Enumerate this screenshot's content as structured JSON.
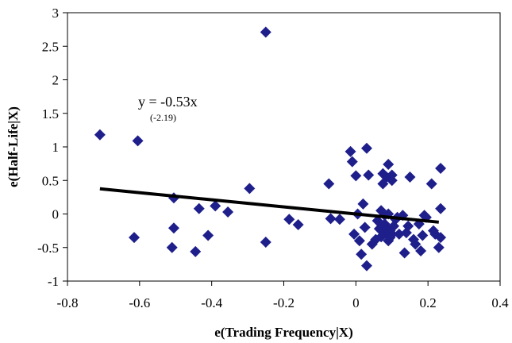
{
  "chart_data": {
    "type": "scatter",
    "xlabel": "e(Trading Frequency|X)",
    "ylabel": "e(Half-Life|X)",
    "xlim": [
      -0.8,
      0.4
    ],
    "ylim": [
      -1,
      3
    ],
    "xticks": [
      -0.8,
      -0.6,
      -0.4,
      -0.2,
      0,
      0.2,
      0.4
    ],
    "yticks": [
      -1,
      -0.5,
      0,
      0.5,
      1,
      1.5,
      2,
      2.5,
      3
    ],
    "xtick_labels": [
      "-0.8",
      "-0.6",
      "-0.4",
      "-0.2",
      "0",
      "0.2",
      "0.4"
    ],
    "ytick_labels": [
      "-1",
      "-0.5",
      "0",
      "0.5",
      "1",
      "1.5",
      "2",
      "2.5",
      "3"
    ],
    "marker_color": "#1f1f8c",
    "line_color": "#000000",
    "grid": false,
    "legend": "none",
    "annotation": {
      "equation": "y = -0.53x",
      "t_stat": "(-2.19)"
    },
    "fit_line": {
      "x": [
        -0.71,
        0.23
      ],
      "y": [
        0.376,
        -0.122
      ]
    },
    "points": {
      "x": [
        -0.71,
        -0.605,
        -0.615,
        -0.505,
        -0.505,
        -0.51,
        -0.445,
        -0.435,
        -0.41,
        -0.39,
        -0.355,
        -0.295,
        -0.25,
        -0.25,
        -0.185,
        -0.16,
        -0.075,
        -0.07,
        -0.045,
        -0.015,
        -0.01,
        -0.005,
        0.0,
        0.005,
        0.015,
        0.01,
        0.02,
        0.025,
        0.03,
        0.03,
        0.035,
        0.045,
        0.055,
        0.06,
        0.065,
        0.07,
        0.07,
        0.075,
        0.075,
        0.08,
        0.08,
        0.08,
        0.085,
        0.085,
        0.09,
        0.09,
        0.09,
        0.095,
        0.095,
        0.1,
        0.1,
        0.1,
        0.105,
        0.11,
        0.115,
        0.12,
        0.13,
        0.135,
        0.14,
        0.145,
        0.15,
        0.16,
        0.165,
        0.175,
        0.18,
        0.185,
        0.19,
        0.195,
        0.21,
        0.215,
        0.22,
        0.23,
        0.235,
        0.235,
        0.235
      ],
      "y": [
        1.18,
        1.09,
        -0.35,
        0.24,
        -0.21,
        -0.5,
        -0.56,
        0.08,
        -0.32,
        0.12,
        0.03,
        0.38,
        2.71,
        -0.42,
        -0.08,
        -0.16,
        0.45,
        -0.07,
        -0.08,
        0.93,
        0.78,
        -0.3,
        0.57,
        0.0,
        -0.6,
        -0.4,
        0.15,
        -0.2,
        0.98,
        -0.77,
        0.58,
        -0.45,
        -0.38,
        -0.1,
        -0.22,
        0.05,
        -0.34,
        0.6,
        0.45,
        -0.02,
        -0.15,
        -0.28,
        0.55,
        -0.22,
        0.74,
        0.0,
        -0.4,
        -0.25,
        -0.35,
        0.58,
        0.5,
        -0.3,
        -0.18,
        -0.08,
        -0.05,
        -0.3,
        -0.02,
        -0.58,
        -0.28,
        -0.18,
        0.55,
        -0.38,
        -0.45,
        -0.15,
        -0.55,
        -0.32,
        -0.02,
        -0.05,
        0.45,
        -0.25,
        -0.3,
        -0.5,
        0.68,
        0.08,
        -0.35
      ]
    }
  }
}
